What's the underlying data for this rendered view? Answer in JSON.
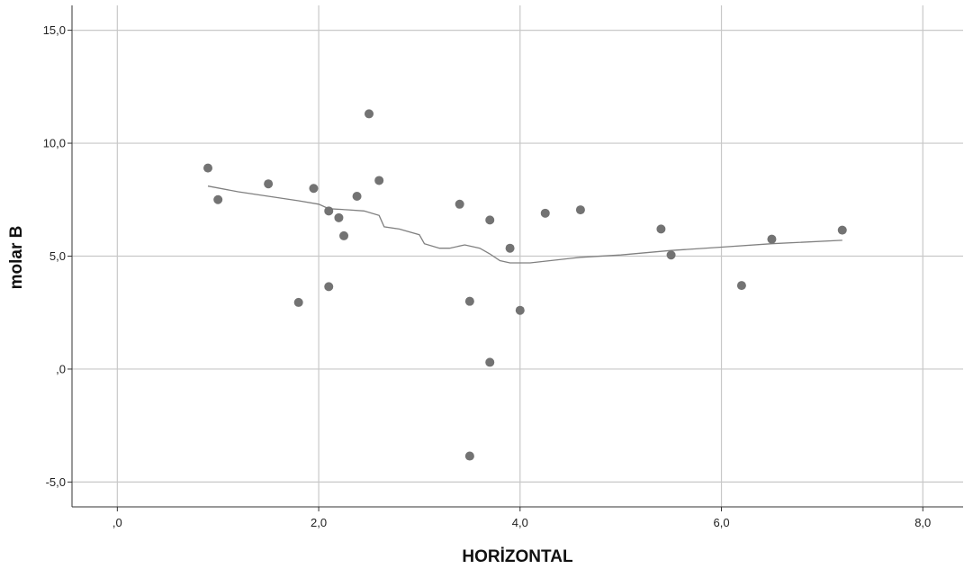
{
  "chart_data": {
    "type": "scatter",
    "xlabel": "HORİZONTAL",
    "ylabel": "molar B",
    "xlim": [
      -0.45,
      8.4
    ],
    "ylim": [
      -6.1,
      16.1
    ],
    "xticks": [
      0,
      2,
      4,
      6,
      8
    ],
    "xtick_labels": [
      ",0",
      "2,0",
      "4,0",
      "6,0",
      "8,0"
    ],
    "yticks": [
      -5,
      0,
      5,
      10,
      15
    ],
    "ytick_labels": [
      "-5,0",
      ",0",
      "5,0",
      "10,0",
      "15,0"
    ],
    "grid": true,
    "colors": {
      "points": "#737373",
      "fit_line": "#808080",
      "grid": "#c8c8c8",
      "axis": "#333333"
    },
    "points": [
      {
        "x": 0.9,
        "y": 8.9
      },
      {
        "x": 1.0,
        "y": 7.5
      },
      {
        "x": 1.5,
        "y": 8.2
      },
      {
        "x": 1.8,
        "y": 2.95
      },
      {
        "x": 1.95,
        "y": 8.0
      },
      {
        "x": 2.1,
        "y": 7.0
      },
      {
        "x": 2.1,
        "y": 3.65
      },
      {
        "x": 2.2,
        "y": 6.7
      },
      {
        "x": 2.25,
        "y": 5.9
      },
      {
        "x": 2.38,
        "y": 7.65
      },
      {
        "x": 2.5,
        "y": 11.3
      },
      {
        "x": 2.6,
        "y": 8.35
      },
      {
        "x": 3.4,
        "y": 7.3
      },
      {
        "x": 3.5,
        "y": 3.0
      },
      {
        "x": 3.5,
        "y": -3.85
      },
      {
        "x": 3.7,
        "y": 6.6
      },
      {
        "x": 3.7,
        "y": 0.3
      },
      {
        "x": 3.9,
        "y": 5.35
      },
      {
        "x": 4.0,
        "y": 2.6
      },
      {
        "x": 4.25,
        "y": 6.9
      },
      {
        "x": 4.6,
        "y": 7.05
      },
      {
        "x": 5.4,
        "y": 6.2
      },
      {
        "x": 5.5,
        "y": 5.05
      },
      {
        "x": 6.2,
        "y": 3.7
      },
      {
        "x": 6.5,
        "y": 5.75
      },
      {
        "x": 7.2,
        "y": 6.15
      }
    ],
    "fit_line": [
      {
        "x": 0.9,
        "y": 8.1
      },
      {
        "x": 1.2,
        "y": 7.85
      },
      {
        "x": 1.5,
        "y": 7.65
      },
      {
        "x": 1.8,
        "y": 7.45
      },
      {
        "x": 2.0,
        "y": 7.3
      },
      {
        "x": 2.1,
        "y": 7.1
      },
      {
        "x": 2.3,
        "y": 7.05
      },
      {
        "x": 2.45,
        "y": 7.0
      },
      {
        "x": 2.6,
        "y": 6.8
      },
      {
        "x": 2.65,
        "y": 6.3
      },
      {
        "x": 2.8,
        "y": 6.2
      },
      {
        "x": 3.0,
        "y": 5.95
      },
      {
        "x": 3.05,
        "y": 5.55
      },
      {
        "x": 3.2,
        "y": 5.35
      },
      {
        "x": 3.3,
        "y": 5.35
      },
      {
        "x": 3.45,
        "y": 5.5
      },
      {
        "x": 3.6,
        "y": 5.35
      },
      {
        "x": 3.7,
        "y": 5.1
      },
      {
        "x": 3.8,
        "y": 4.8
      },
      {
        "x": 3.9,
        "y": 4.7
      },
      {
        "x": 4.0,
        "y": 4.7
      },
      {
        "x": 4.1,
        "y": 4.7
      },
      {
        "x": 4.3,
        "y": 4.8
      },
      {
        "x": 4.6,
        "y": 4.95
      },
      {
        "x": 5.0,
        "y": 5.05
      },
      {
        "x": 5.5,
        "y": 5.25
      },
      {
        "x": 6.0,
        "y": 5.4
      },
      {
        "x": 6.5,
        "y": 5.55
      },
      {
        "x": 7.2,
        "y": 5.7
      }
    ]
  }
}
